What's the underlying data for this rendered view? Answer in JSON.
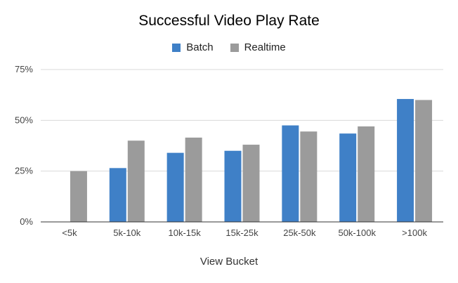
{
  "chart_data": {
    "type": "bar",
    "title": "Successful Video Play Rate",
    "xlabel": "View Bucket",
    "ylabel": "",
    "categories": [
      "<5k",
      "5k-10k",
      "10k-15k",
      "15k-25k",
      "25k-50k",
      "50k-100k",
      ">100k"
    ],
    "series": [
      {
        "name": "Batch",
        "color": "#3f80c7",
        "values": [
          null,
          26.5,
          34,
          35,
          47.5,
          43.5,
          60.5
        ]
      },
      {
        "name": "Realtime",
        "color": "#9b9b9b",
        "values": [
          25,
          40,
          41.5,
          38,
          44.5,
          47,
          60
        ]
      }
    ],
    "ylim": [
      0,
      75
    ],
    "yticks": [
      "0%",
      "25%",
      "50%",
      "75%"
    ],
    "ytick_values": [
      0,
      25,
      50,
      75
    ],
    "grid": true,
    "legend_position": "top-center"
  }
}
